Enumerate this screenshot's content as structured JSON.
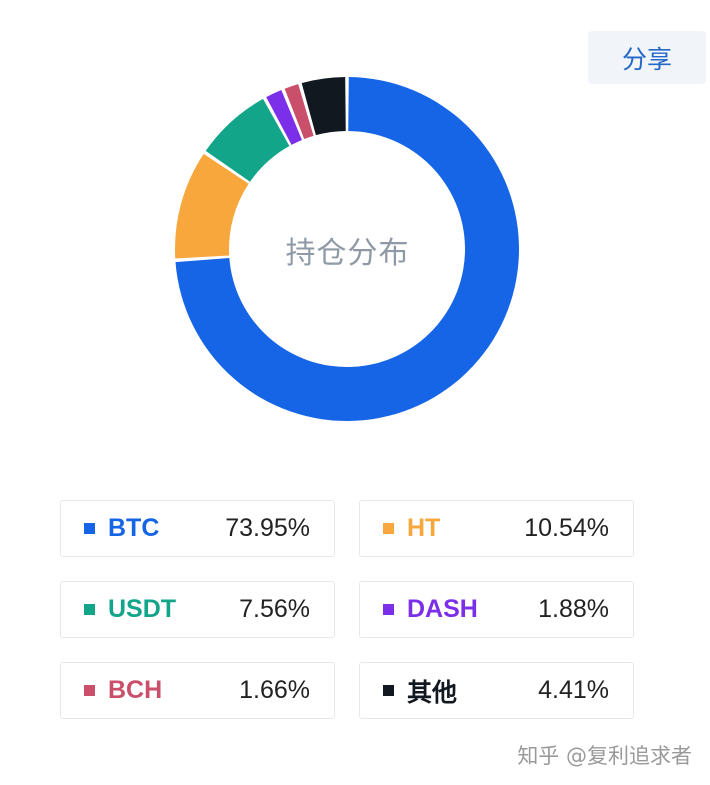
{
  "share": {
    "label": "分享"
  },
  "center_label": "持仓分布",
  "watermark": "知乎 @复利追求者",
  "chart_data": {
    "type": "pie",
    "categories": [
      "BTC",
      "HT",
      "USDT",
      "DASH",
      "BCH",
      "其他"
    ],
    "values": [
      73.95,
      10.54,
      7.56,
      1.88,
      1.66,
      4.41
    ],
    "labels": [
      "73.95%",
      "10.54%",
      "7.56%",
      "1.88%",
      "1.66%",
      "4.41%"
    ],
    "colors": [
      "#1565e6",
      "#f7a73c",
      "#12a58a",
      "#7b2fe8",
      "#c94f6a",
      "#111820"
    ]
  }
}
